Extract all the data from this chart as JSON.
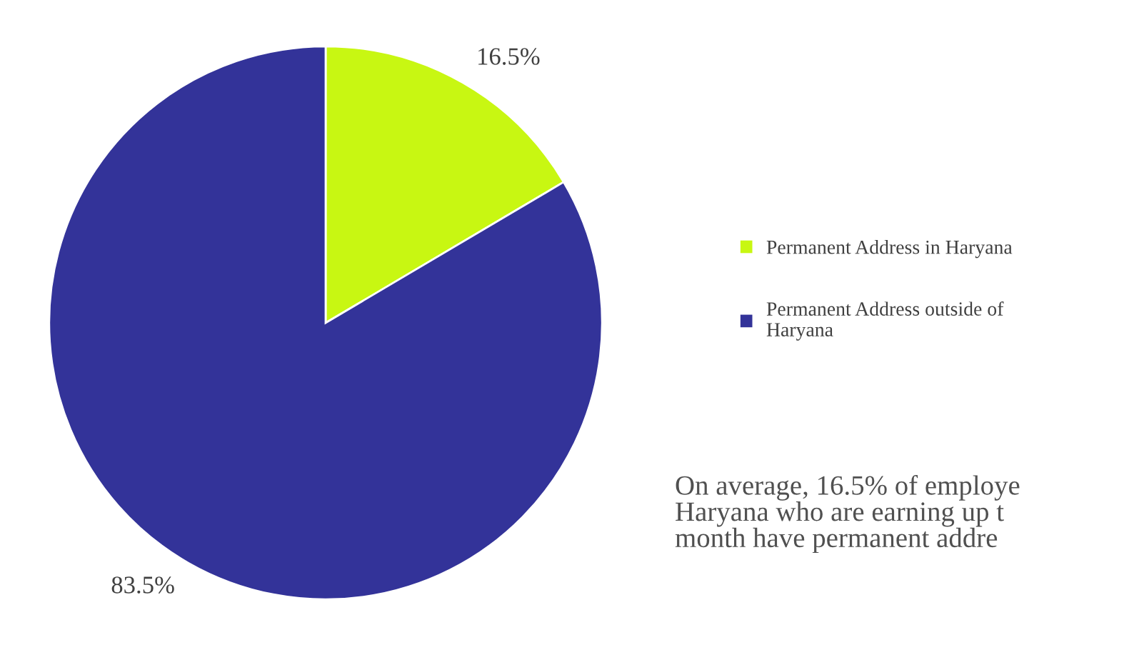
{
  "chart_data": {
    "type": "pie",
    "categories": [
      "Permanent Address in Haryana",
      "Permanent Address outside of\nHaryana"
    ],
    "values": [
      16.5,
      83.5
    ],
    "colors": [
      "#c8f712",
      "#333399"
    ],
    "value_labels": [
      "16.5%",
      "83.5%"
    ],
    "legend": "right",
    "annotations": [
      "On average, 16.5% of employe\nHaryana who are earning up t\nmonth have permanent addre"
    ]
  }
}
